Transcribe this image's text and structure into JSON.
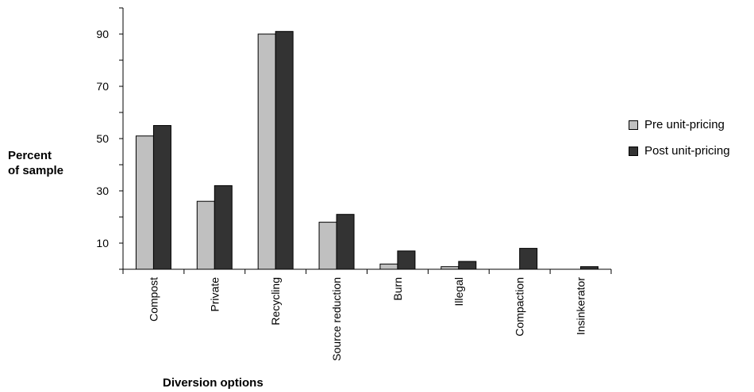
{
  "chart_data": {
    "type": "bar",
    "categories": [
      "Compost",
      "Private",
      "Recycling",
      "Source reduction",
      "Burn",
      "Illegal",
      "Compaction",
      "Insinkerator"
    ],
    "series": [
      {
        "name": "Pre unit-pricing",
        "color": "#c0c0c0",
        "values": [
          51,
          26,
          90,
          18,
          2,
          1,
          0,
          0
        ]
      },
      {
        "name": "Post unit-pricing",
        "color": "#333333",
        "values": [
          55,
          32,
          91,
          21,
          7,
          3,
          8,
          1
        ]
      }
    ],
    "y_ticks": [
      10,
      30,
      50,
      70,
      90
    ],
    "ylim": [
      0,
      100
    ],
    "ylabel_lines": [
      "Percent",
      "of sample"
    ],
    "xlabel": "Diversion options",
    "grid": false,
    "legend_position": "right"
  }
}
